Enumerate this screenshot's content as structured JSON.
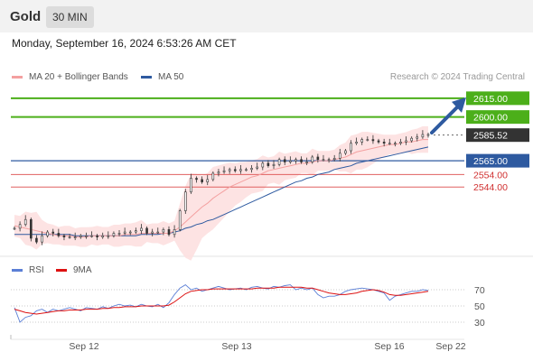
{
  "header": {
    "instrument": "Gold",
    "timeframe": "30 MIN",
    "datetime": "Monday, September 16, 2024 6:53:26 AM CET"
  },
  "credit": "Research © 2024 Trading Central",
  "legend": [
    {
      "label": "MA 20 + Bollinger Bands",
      "color": "#f4a0a0"
    },
    {
      "label": "MA 50",
      "color": "#2e5aa0"
    }
  ],
  "rsi_legend": [
    {
      "label": "RSI",
      "color": "#5b7fd6"
    },
    {
      "label": "9MA",
      "color": "#dd1111"
    }
  ],
  "colors": {
    "green": "#4caf1a",
    "blue": "#2e5aa0",
    "red": "#e06060",
    "price_tag": "#333333",
    "bands": "#fde0e0"
  },
  "chart_data": {
    "type": "line",
    "title": "Gold",
    "x_labels": [
      "Sep 12",
      "Sep 13",
      "Sep 16",
      "Sep 22"
    ],
    "levels": [
      {
        "value": 2615.0,
        "label": "2615.00",
        "type": "resistance"
      },
      {
        "value": 2600.0,
        "label": "2600.00",
        "type": "resistance"
      },
      {
        "value": 2585.52,
        "label": "2585.52",
        "type": "last_price"
      },
      {
        "value": 2565.0,
        "label": "2565.00",
        "type": "pivot"
      },
      {
        "value": 2554.0,
        "label": "2554.00",
        "type": "support"
      },
      {
        "value": 2544.0,
        "label": "2544.00",
        "type": "support"
      }
    ],
    "price_range": [
      2490,
      2625
    ],
    "price_series": [
      2511,
      2514,
      2518,
      2503,
      2500,
      2505,
      2508,
      2507,
      2505,
      2504,
      2504,
      2504,
      2505,
      2505,
      2505,
      2504,
      2505,
      2505,
      2507,
      2507,
      2508,
      2508,
      2509,
      2511,
      2507,
      2508,
      2508,
      2510,
      2506,
      2510,
      2525,
      2540,
      2551,
      2550,
      2548,
      2550,
      2555,
      2556,
      2557,
      2558,
      2557,
      2558,
      2558,
      2559,
      2560,
      2563,
      2561,
      2562,
      2566,
      2564,
      2565,
      2566,
      2564,
      2564,
      2568,
      2566,
      2566,
      2566,
      2567,
      2571,
      2573,
      2579,
      2580,
      2582,
      2582,
      2581,
      2580,
      2579,
      2579,
      2579,
      2580,
      2581,
      2583,
      2584,
      2586,
      2586
    ],
    "ma20": [
      2513,
      2512,
      2511,
      2510,
      2509,
      2508,
      2507,
      2506,
      2505,
      2505,
      2505,
      2504,
      2504,
      2504,
      2505,
      2505,
      2505,
      2505,
      2505,
      2505,
      2506,
      2506,
      2506,
      2507,
      2507,
      2507,
      2507,
      2507,
      2507,
      2509,
      2512,
      2516,
      2520,
      2524,
      2528,
      2531,
      2535,
      2538,
      2541,
      2544,
      2546,
      2548,
      2550,
      2552,
      2553,
      2555,
      2557,
      2558,
      2559,
      2560,
      2561,
      2562,
      2563,
      2563,
      2564,
      2565,
      2565,
      2565,
      2566,
      2567,
      2568,
      2570,
      2572,
      2573,
      2574,
      2575,
      2576,
      2577,
      2578,
      2578,
      2579,
      2580,
      2580,
      2581,
      2582,
      2582
    ],
    "ma50": [
      2506,
      2506,
      2506,
      2506,
      2506,
      2506,
      2506,
      2506,
      2506,
      2506,
      2506,
      2505,
      2505,
      2505,
      2505,
      2505,
      2505,
      2505,
      2505,
      2505,
      2505,
      2505,
      2505,
      2506,
      2506,
      2506,
      2506,
      2507,
      2507,
      2508,
      2509,
      2511,
      2512,
      2514,
      2515,
      2517,
      2518,
      2520,
      2522,
      2524,
      2526,
      2528,
      2530,
      2532,
      2534,
      2536,
      2538,
      2540,
      2542,
      2544,
      2546,
      2548,
      2549,
      2551,
      2552,
      2554,
      2555,
      2556,
      2558,
      2559,
      2560,
      2561,
      2563,
      2564,
      2565,
      2566,
      2567,
      2568,
      2569,
      2570,
      2571,
      2572,
      2573,
      2574,
      2575,
      2576
    ],
    "rsi_range": [
      20,
      80
    ],
    "rsi_levels": [
      70,
      50,
      30
    ],
    "rsi": [
      48,
      30,
      36,
      38,
      44,
      46,
      42,
      46,
      44,
      46,
      48,
      46,
      44,
      48,
      47,
      46,
      49,
      47,
      50,
      52,
      50,
      51,
      49,
      52,
      50,
      49,
      52,
      48,
      54,
      64,
      72,
      76,
      70,
      72,
      68,
      70,
      72,
      74,
      72,
      70,
      71,
      72,
      70,
      73,
      74,
      72,
      71,
      74,
      73,
      75,
      76,
      70,
      72,
      70,
      72,
      64,
      60,
      62,
      62,
      64,
      68,
      70,
      71,
      72,
      71,
      70,
      68,
      66,
      57,
      62,
      64,
      66,
      68,
      68,
      70,
      69
    ],
    "rsi_ma": [
      46,
      44,
      42,
      41,
      40,
      41,
      42,
      43,
      44,
      44,
      45,
      45,
      45,
      46,
      46,
      46,
      47,
      47,
      48,
      48,
      49,
      49,
      49,
      50,
      50,
      50,
      50,
      50,
      51,
      55,
      60,
      65,
      68,
      69,
      70,
      70,
      71,
      71,
      71,
      71,
      71,
      71,
      71,
      71,
      72,
      72,
      72,
      72,
      73,
      73,
      73,
      73,
      73,
      72,
      72,
      70,
      68,
      66,
      65,
      64,
      64,
      65,
      66,
      68,
      69,
      70,
      69,
      67,
      64,
      63,
      63,
      64,
      65,
      66,
      67,
      68
    ]
  }
}
